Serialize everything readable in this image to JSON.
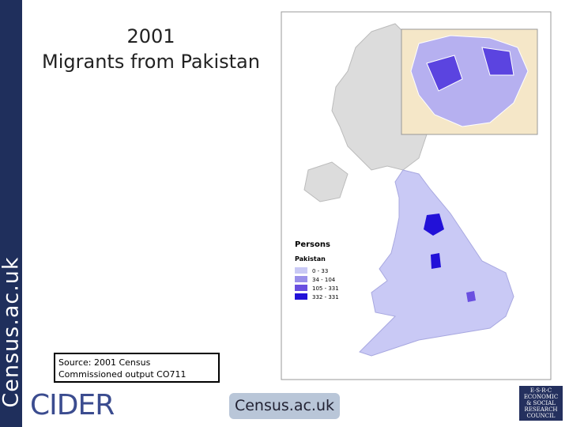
{
  "sidebar": "Census.ac.uk",
  "title": [
    "2001",
    "Migrants from Pakistan"
  ],
  "legend": {
    "title": "Persons",
    "subtitle": "Pakistan",
    "items": [
      {
        "label": "0 - 33",
        "color": "#c9c9f5"
      },
      {
        "label": "34 - 104",
        "color": "#9a90ea"
      },
      {
        "label": "105 - 331",
        "color": "#6a4fe0"
      },
      {
        "label": "332 - 331",
        "color": "#2211d8"
      }
    ]
  },
  "source": [
    "Source: 2001 Census",
    "Commissioned output CO711"
  ],
  "logos": {
    "cider": "CIDER",
    "census": "Census.ac.uk",
    "esrc": [
      "E·S·R·C",
      "ECONOMIC",
      "& SOCIAL",
      "RESEARCH",
      "COUNCIL"
    ]
  }
}
